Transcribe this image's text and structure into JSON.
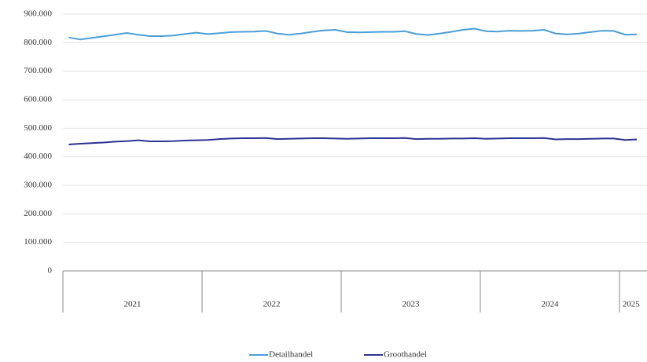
{
  "chart_data": {
    "type": "line",
    "categories": [
      "2021",
      "2021",
      "2021",
      "2021",
      "2021",
      "2021",
      "2021",
      "2021",
      "2021",
      "2021",
      "2021",
      "2021",
      "2022",
      "2022",
      "2022",
      "2022",
      "2022",
      "2022",
      "2022",
      "2022",
      "2022",
      "2022",
      "2022",
      "2022",
      "2023",
      "2023",
      "2023",
      "2023",
      "2023",
      "2023",
      "2023",
      "2023",
      "2023",
      "2023",
      "2023",
      "2023",
      "2024",
      "2024",
      "2024",
      "2024",
      "2024",
      "2024",
      "2024",
      "2024",
      "2024",
      "2024",
      "2024",
      "2024",
      "2025",
      "2025"
    ],
    "series": [
      {
        "name": "Detailhandel",
        "color": "#4a9fd8",
        "values": [
          818000,
          811000,
          817000,
          822000,
          828000,
          834000,
          828000,
          823000,
          823000,
          825000,
          830000,
          835000,
          830000,
          833000,
          837000,
          838000,
          839000,
          841000,
          832000,
          828000,
          832000,
          838000,
          843000,
          845000,
          837000,
          836000,
          837000,
          838000,
          838000,
          840000,
          830000,
          827000,
          832000,
          838000,
          845000,
          849000,
          840000,
          839000,
          842000,
          841000,
          842000,
          845000,
          832000,
          829000,
          832000,
          837000,
          842000,
          841000,
          828000,
          829000
        ]
      },
      {
        "name": "Groothandel",
        "color": "#2e3192",
        "values": [
          443000,
          446000,
          448000,
          450000,
          453000,
          455000,
          458000,
          454000,
          454000,
          455000,
          457000,
          458000,
          459000,
          462000,
          464000,
          465000,
          465000,
          466000,
          462000,
          463000,
          464000,
          465000,
          465000,
          464000,
          463000,
          464000,
          465000,
          465000,
          465000,
          466000,
          462000,
          463000,
          463000,
          464000,
          464000,
          465000,
          463000,
          464000,
          465000,
          465000,
          465000,
          466000,
          461000,
          462000,
          462000,
          463000,
          464000,
          464000,
          459000,
          461000
        ]
      }
    ],
    "ylim": [
      0,
      900000
    ],
    "yticks": [
      0,
      {
        "value": 100000,
        "label": "100.000"
      },
      {
        "value": 200000,
        "label": "200.000"
      },
      {
        "value": 300000,
        "label": "300.000"
      },
      {
        "value": 400000,
        "label": "400.000"
      },
      {
        "value": 500000,
        "label": "500.000"
      },
      {
        "value": 600000,
        "label": "600.000"
      },
      {
        "value": 700000,
        "label": "700.000"
      },
      {
        "value": 800000,
        "label": "800.000"
      },
      {
        "value": 900000,
        "label": "900.000"
      }
    ],
    "grid": true,
    "legend": "bottom"
  }
}
